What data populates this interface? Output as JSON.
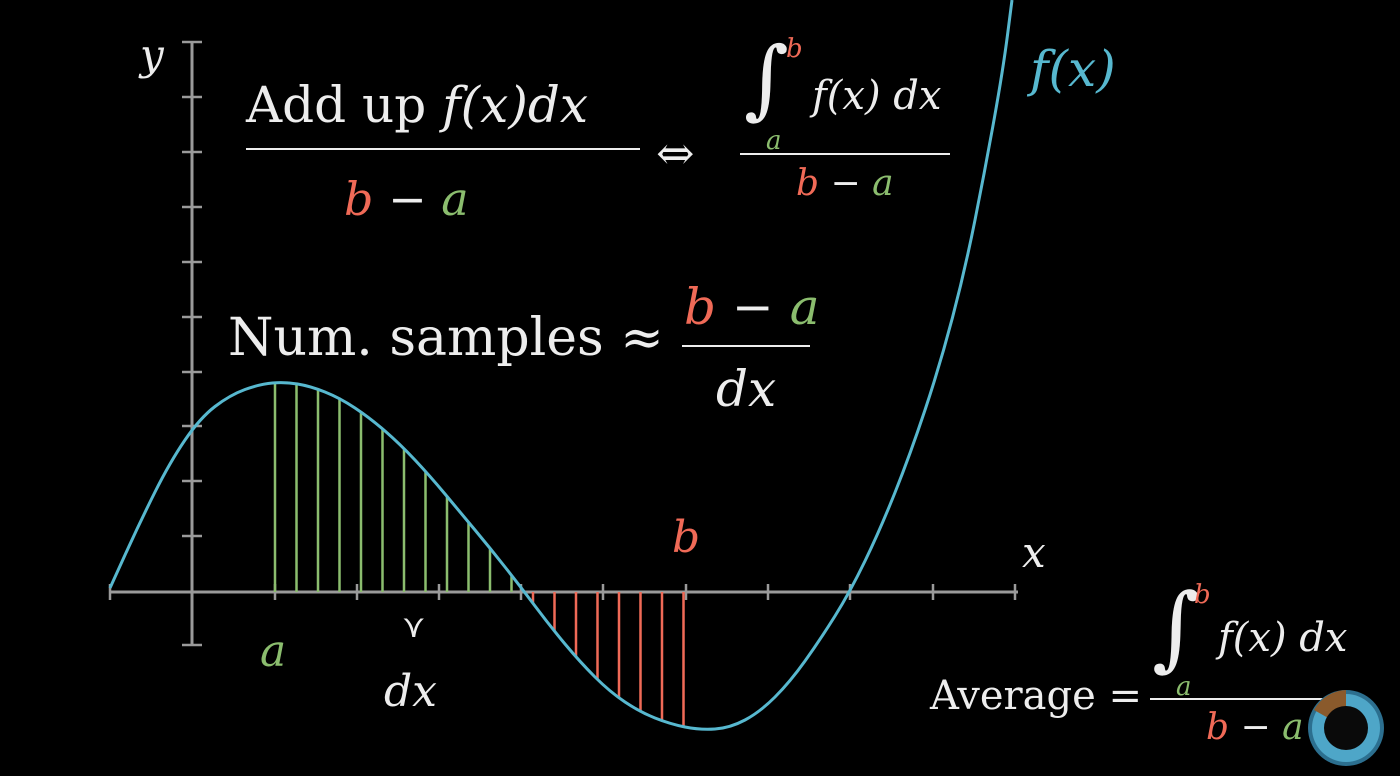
{
  "labels": {
    "y_axis": "y",
    "x_axis": "x",
    "func": "f(x)",
    "a": "a",
    "b": "b",
    "dx": "dx",
    "dx_brace": "⋎"
  },
  "top_left": {
    "numerator_text": "Add up ",
    "numerator_math": "f(x)dx",
    "den_b": "b",
    "den_minus": "−",
    "den_a": "a",
    "iff": "⇔"
  },
  "top_right": {
    "int_sign": "∫",
    "upper": "b",
    "lower": "a",
    "integrand": "f(x) dx",
    "den_b": "b",
    "den_minus": "−",
    "den_a": "a"
  },
  "samples": {
    "text": "Num. samples ≈",
    "num_b": "b",
    "num_minus": "−",
    "num_a": "a",
    "den": "dx"
  },
  "average": {
    "text": "Average =",
    "int_sign": "∫",
    "upper": "b",
    "lower": "a",
    "integrand": "f(x) dx",
    "den_b": "b",
    "den_minus": "−",
    "den_a": "a"
  },
  "colors": {
    "curve": "#57b8cf",
    "green": "#8bbd6e",
    "red": "#f06a57",
    "axis": "#9a9a9a",
    "text": "#ededed"
  }
}
